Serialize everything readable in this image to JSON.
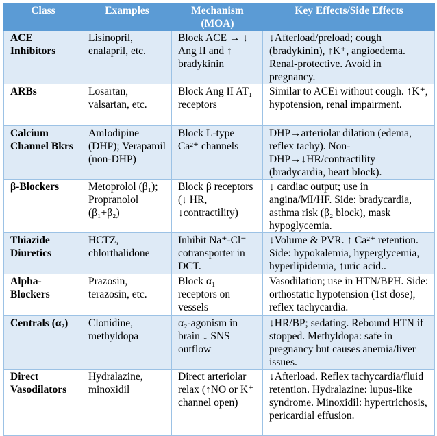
{
  "headers": [
    "Class",
    "Examples",
    "Mechanism (MOA)",
    "Key Effects/Side Effects"
  ],
  "rows": [
    {
      "class": "ACE Inhibitors",
      "examples": "Lisinopril, enalapril, etc.",
      "mechanism": "Block ACE → ↓ Ang II and ↑ bradykinin",
      "effects": "↓Afterload/preload; cough (bradykinin), ↑K⁺, angioedema. Renal-protective. Avoid in pregnancy."
    },
    {
      "class": "ARBs",
      "examples": "Losartan, valsartan, etc.",
      "mechanism": "Block Ang II AT₁ receptors",
      "effects": "Similar to ACEi without cough. ↑K⁺, hypotension, renal impairment."
    },
    {
      "class": "Calcium Channel Bkrs",
      "examples": "Amlodipine (DHP); Verapamil (non-DHP)",
      "mechanism": "Block L-type Ca²⁺ channels",
      "effects": "DHP→arteriolar dilation (edema, reflex tachy). Non-DHP→↓HR/contractility (bradycardia, heart block)."
    },
    {
      "class": "β-Blockers",
      "examples": "Metoprolol (β₁); Propranolol (β₁+β₂)",
      "mechanism": "Block β receptors (↓ HR, ↓contractility)",
      "effects": "↓ cardiac output; use in angina/MI/HF. Side: bradycardia, asthma risk (β₂ block), mask hypoglycemia."
    },
    {
      "class": "Thiazide Diuretics",
      "examples": "HCTZ, chlorthalidone",
      "mechanism": "Inhibit Na⁺-Cl⁻ cotransporter in DCT.",
      "effects": "↓Volume & PVR. ↑ Ca²⁺ retention. Side: hypokalemia, hyperglycemia, hyperlipidemia, ↑uric acid.."
    },
    {
      "class": "Alpha-Blockers",
      "examples": "Prazosin, terazosin, etc.",
      "mechanism": "Block α₁ receptors on vessels",
      "effects": "Vasodilation; use in HTN/BPH. Side: orthostatic hypotension (1st dose), reflex tachycardia."
    },
    {
      "class": "Centrals (α₂)",
      "examples": "Clonidine, methyldopa",
      "mechanism": "α₂-agonism in brain ↓ SNS outflow",
      "effects": "↓HR/BP; sedating. Rebound HTN if stopped. Methyldopa: safe in pregnancy but causes anemia/liver issues."
    },
    {
      "class": "Direct Vasodilators",
      "examples": "Hydralazine, minoxidil",
      "mechanism": "Direct arteriolar relax (↑NO or K⁺ channel open)",
      "effects": "↓Afterload. Reflex tachycardia/fluid retention. Hydralazine: lupus-like syndrome. Minoxidil: hypertrichosis, pericardial effusion."
    }
  ]
}
